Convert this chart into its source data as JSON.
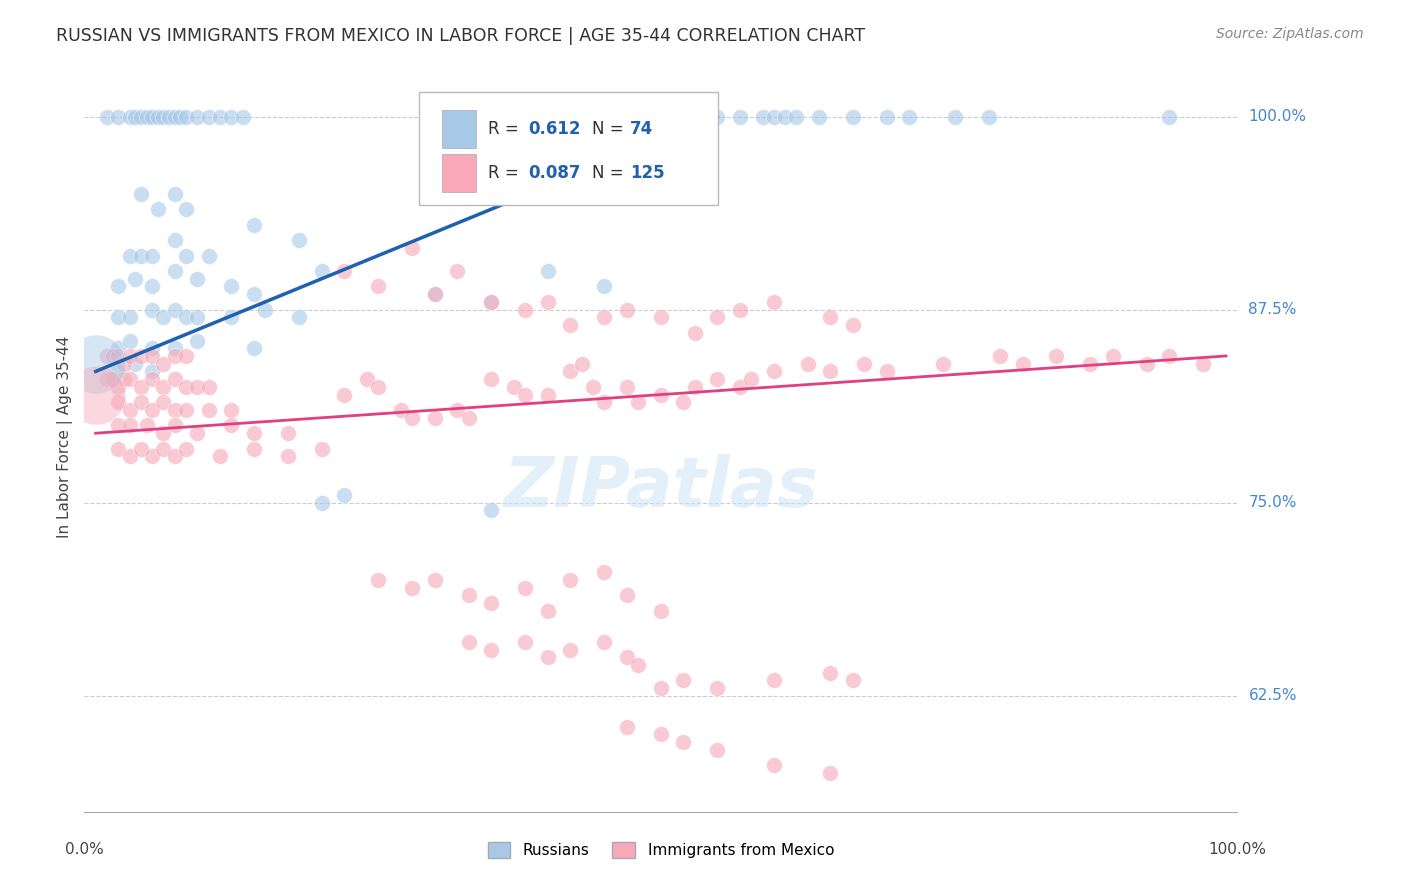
{
  "title": "RUSSIAN VS IMMIGRANTS FROM MEXICO IN LABOR FORCE | AGE 35-44 CORRELATION CHART",
  "source": "Source: ZipAtlas.com",
  "ylabel": "In Labor Force | Age 35-44",
  "yaxis_labels": [
    "62.5%",
    "75.0%",
    "87.5%",
    "100.0%"
  ],
  "yaxis_vals": [
    62.5,
    75.0,
    87.5,
    100.0
  ],
  "blue_R": "0.612",
  "blue_N": "74",
  "pink_R": "0.087",
  "pink_N": "125",
  "blue_scatter": [
    [
      1.0,
      100.0
    ],
    [
      2.0,
      100.0
    ],
    [
      3.0,
      100.0
    ],
    [
      3.5,
      100.0
    ],
    [
      4.0,
      100.0
    ],
    [
      4.5,
      100.0
    ],
    [
      5.0,
      100.0
    ],
    [
      5.5,
      100.0
    ],
    [
      6.0,
      100.0
    ],
    [
      6.5,
      100.0
    ],
    [
      7.0,
      100.0
    ],
    [
      7.5,
      100.0
    ],
    [
      8.0,
      100.0
    ],
    [
      9.0,
      100.0
    ],
    [
      10.0,
      100.0
    ],
    [
      11.0,
      100.0
    ],
    [
      12.0,
      100.0
    ],
    [
      13.0,
      100.0
    ],
    [
      50.0,
      100.0
    ],
    [
      53.0,
      100.0
    ],
    [
      55.0,
      100.0
    ],
    [
      57.0,
      100.0
    ],
    [
      59.0,
      100.0
    ],
    [
      60.0,
      100.0
    ],
    [
      61.0,
      100.0
    ],
    [
      62.0,
      100.0
    ],
    [
      64.0,
      100.0
    ],
    [
      67.0,
      100.0
    ],
    [
      70.0,
      100.0
    ],
    [
      72.0,
      100.0
    ],
    [
      76.0,
      100.0
    ],
    [
      79.0,
      100.0
    ],
    [
      95.0,
      100.0
    ],
    [
      4.0,
      95.0
    ],
    [
      5.5,
      94.0
    ],
    [
      7.0,
      95.0
    ],
    [
      8.0,
      94.0
    ],
    [
      14.0,
      93.0
    ],
    [
      18.0,
      92.0
    ],
    [
      3.0,
      91.0
    ],
    [
      4.0,
      91.0
    ],
    [
      5.0,
      91.0
    ],
    [
      7.0,
      92.0
    ],
    [
      8.0,
      91.0
    ],
    [
      10.0,
      91.0
    ],
    [
      2.0,
      89.0
    ],
    [
      3.5,
      89.5
    ],
    [
      5.0,
      89.0
    ],
    [
      7.0,
      90.0
    ],
    [
      9.0,
      89.5
    ],
    [
      12.0,
      89.0
    ],
    [
      14.0,
      88.5
    ],
    [
      20.0,
      90.0
    ],
    [
      2.0,
      87.0
    ],
    [
      3.0,
      87.0
    ],
    [
      5.0,
      87.5
    ],
    [
      6.0,
      87.0
    ],
    [
      7.0,
      87.5
    ],
    [
      8.0,
      87.0
    ],
    [
      9.0,
      87.0
    ],
    [
      12.0,
      87.0
    ],
    [
      15.0,
      87.5
    ],
    [
      18.0,
      87.0
    ],
    [
      2.0,
      85.0
    ],
    [
      3.0,
      85.5
    ],
    [
      5.0,
      85.0
    ],
    [
      7.0,
      85.0
    ],
    [
      9.0,
      85.5
    ],
    [
      14.0,
      85.0
    ],
    [
      2.0,
      83.5
    ],
    [
      3.5,
      84.0
    ],
    [
      5.0,
      83.5
    ],
    [
      30.0,
      88.5
    ],
    [
      35.0,
      88.0
    ],
    [
      40.0,
      90.0
    ],
    [
      45.0,
      89.0
    ],
    [
      20.0,
      75.0
    ],
    [
      22.0,
      75.5
    ],
    [
      35.0,
      74.5
    ]
  ],
  "pink_scatter": [
    [
      1.0,
      84.5
    ],
    [
      1.5,
      84.5
    ],
    [
      2.0,
      84.5
    ],
    [
      2.5,
      84.0
    ],
    [
      3.0,
      84.5
    ],
    [
      4.0,
      84.5
    ],
    [
      5.0,
      84.5
    ],
    [
      6.0,
      84.0
    ],
    [
      7.0,
      84.5
    ],
    [
      8.0,
      84.5
    ],
    [
      1.0,
      83.0
    ],
    [
      1.5,
      83.0
    ],
    [
      2.0,
      82.5
    ],
    [
      2.5,
      83.0
    ],
    [
      3.0,
      83.0
    ],
    [
      4.0,
      82.5
    ],
    [
      5.0,
      83.0
    ],
    [
      6.0,
      82.5
    ],
    [
      7.0,
      83.0
    ],
    [
      8.0,
      82.5
    ],
    [
      9.0,
      82.5
    ],
    [
      10.0,
      82.5
    ],
    [
      2.0,
      81.5
    ],
    [
      3.0,
      81.0
    ],
    [
      4.0,
      81.5
    ],
    [
      5.0,
      81.0
    ],
    [
      6.0,
      81.5
    ],
    [
      7.0,
      81.0
    ],
    [
      8.0,
      81.0
    ],
    [
      10.0,
      81.0
    ],
    [
      12.0,
      81.0
    ],
    [
      2.0,
      80.0
    ],
    [
      3.0,
      80.0
    ],
    [
      4.5,
      80.0
    ],
    [
      6.0,
      79.5
    ],
    [
      7.0,
      80.0
    ],
    [
      9.0,
      79.5
    ],
    [
      12.0,
      80.0
    ],
    [
      14.0,
      79.5
    ],
    [
      17.0,
      79.5
    ],
    [
      2.0,
      78.5
    ],
    [
      3.0,
      78.0
    ],
    [
      4.0,
      78.5
    ],
    [
      5.0,
      78.0
    ],
    [
      6.0,
      78.5
    ],
    [
      7.0,
      78.0
    ],
    [
      8.0,
      78.5
    ],
    [
      11.0,
      78.0
    ],
    [
      14.0,
      78.5
    ],
    [
      17.0,
      78.0
    ],
    [
      20.0,
      78.5
    ],
    [
      22.0,
      82.0
    ],
    [
      24.0,
      83.0
    ],
    [
      25.0,
      82.5
    ],
    [
      27.0,
      81.0
    ],
    [
      28.0,
      80.5
    ],
    [
      30.0,
      80.5
    ],
    [
      32.0,
      81.0
    ],
    [
      33.0,
      80.5
    ],
    [
      35.0,
      83.0
    ],
    [
      37.0,
      82.5
    ],
    [
      38.0,
      82.0
    ],
    [
      40.0,
      82.0
    ],
    [
      42.0,
      83.5
    ],
    [
      43.0,
      84.0
    ],
    [
      44.0,
      82.5
    ],
    [
      45.0,
      81.5
    ],
    [
      47.0,
      82.5
    ],
    [
      48.0,
      81.5
    ],
    [
      50.0,
      82.0
    ],
    [
      52.0,
      81.5
    ],
    [
      53.0,
      82.5
    ],
    [
      55.0,
      83.0
    ],
    [
      57.0,
      82.5
    ],
    [
      58.0,
      83.0
    ],
    [
      60.0,
      83.5
    ],
    [
      63.0,
      84.0
    ],
    [
      65.0,
      83.5
    ],
    [
      68.0,
      84.0
    ],
    [
      70.0,
      83.5
    ],
    [
      75.0,
      84.0
    ],
    [
      80.0,
      84.5
    ],
    [
      82.0,
      84.0
    ],
    [
      85.0,
      84.5
    ],
    [
      88.0,
      84.0
    ],
    [
      90.0,
      84.5
    ],
    [
      93.0,
      84.0
    ],
    [
      95.0,
      84.5
    ],
    [
      98.0,
      84.0
    ],
    [
      22.0,
      90.0
    ],
    [
      25.0,
      89.0
    ],
    [
      28.0,
      91.5
    ],
    [
      30.0,
      88.5
    ],
    [
      32.0,
      90.0
    ],
    [
      35.0,
      88.0
    ],
    [
      38.0,
      87.5
    ],
    [
      40.0,
      88.0
    ],
    [
      42.0,
      86.5
    ],
    [
      45.0,
      87.0
    ],
    [
      47.0,
      87.5
    ],
    [
      50.0,
      87.0
    ],
    [
      53.0,
      86.0
    ],
    [
      55.0,
      87.0
    ],
    [
      57.0,
      87.5
    ],
    [
      60.0,
      88.0
    ],
    [
      65.0,
      87.0
    ],
    [
      67.0,
      86.5
    ],
    [
      25.0,
      70.0
    ],
    [
      28.0,
      69.5
    ],
    [
      30.0,
      70.0
    ],
    [
      33.0,
      69.0
    ],
    [
      35.0,
      68.5
    ],
    [
      38.0,
      69.5
    ],
    [
      40.0,
      68.0
    ],
    [
      42.0,
      70.0
    ],
    [
      45.0,
      70.5
    ],
    [
      47.0,
      69.0
    ],
    [
      50.0,
      68.0
    ],
    [
      33.0,
      66.0
    ],
    [
      35.0,
      65.5
    ],
    [
      38.0,
      66.0
    ],
    [
      40.0,
      65.0
    ],
    [
      42.0,
      65.5
    ],
    [
      45.0,
      66.0
    ],
    [
      47.0,
      65.0
    ],
    [
      48.0,
      64.5
    ],
    [
      50.0,
      63.0
    ],
    [
      52.0,
      63.5
    ],
    [
      55.0,
      63.0
    ],
    [
      47.0,
      60.5
    ],
    [
      50.0,
      60.0
    ],
    [
      52.0,
      59.5
    ],
    [
      55.0,
      59.0
    ],
    [
      60.0,
      63.5
    ],
    [
      65.0,
      64.0
    ],
    [
      67.0,
      63.5
    ],
    [
      60.0,
      58.0
    ],
    [
      65.0,
      57.5
    ]
  ],
  "blue_line": {
    "x0": 0,
    "x1": 55,
    "y0": 83.5,
    "y1": 100.0
  },
  "pink_line": {
    "x0": 0,
    "x1": 100,
    "y0": 79.5,
    "y1": 84.5
  },
  "blue_scatter_color": "#a8c8e8",
  "pink_scatter_color": "#f8a8b8",
  "blue_line_color": "#2060b0",
  "pink_line_color": "#e04080",
  "background_color": "#ffffff",
  "grid_color": "#cccccc",
  "title_color": "#333333",
  "right_axis_color": "#4488cc",
  "ylim": [
    55.0,
    103.5
  ],
  "xlim": [
    -1.0,
    101.0
  ],
  "big_blue_x": 0.0,
  "big_blue_y": 84.0,
  "big_pink_x": 0.0,
  "big_pink_y": 82.0
}
